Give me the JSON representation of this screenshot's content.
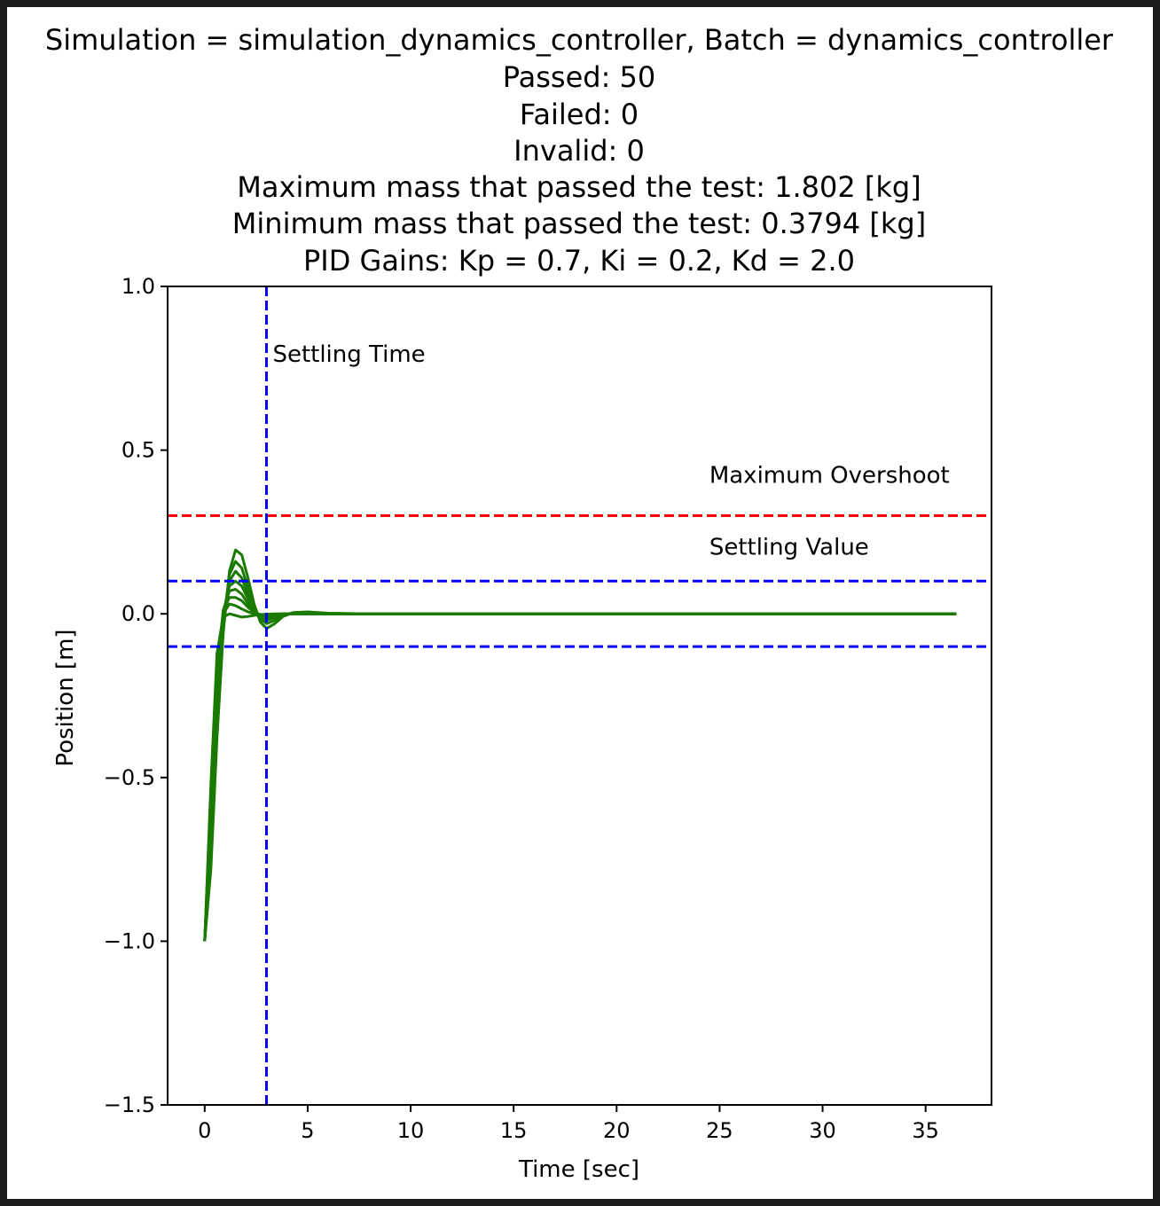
{
  "chart_data": {
    "type": "line",
    "title_lines": [
      "Simulation = simulation_dynamics_controller, Batch = dynamics_controller",
      "Passed: 50",
      "Failed: 0",
      "Invalid: 0",
      "Maximum mass that passed the test: 1.802 [kg]",
      "Minimum mass that passed the test: 0.3794 [kg]",
      "PID Gains: Kp = 0.7, Ki = 0.2, Kd = 2.0"
    ],
    "xlabel": "Time [sec]",
    "ylabel": "Position [m]",
    "xlim": [
      -1.8,
      38.2
    ],
    "ylim": [
      -1.5,
      1.0
    ],
    "xticks": [
      0,
      5,
      10,
      15,
      20,
      25,
      30,
      35
    ],
    "xtick_labels": [
      "0",
      "5",
      "10",
      "15",
      "20",
      "25",
      "30",
      "35"
    ],
    "yticks": [
      1.0,
      0.5,
      0.0,
      -0.5,
      -1.0,
      -1.5
    ],
    "ytick_labels": [
      "1.0",
      "0.5",
      "0.0",
      "−0.5",
      "−1.0",
      "−1.5"
    ],
    "grid": false,
    "reference_lines": [
      {
        "orientation": "horizontal",
        "value": 0.3,
        "color": "#ff0000",
        "style": "dashed"
      },
      {
        "orientation": "horizontal",
        "value": 0.1,
        "color": "#0000ff",
        "style": "dashed"
      },
      {
        "orientation": "horizontal",
        "value": -0.1,
        "color": "#0000ff",
        "style": "dashed"
      },
      {
        "orientation": "vertical",
        "value": 3.0,
        "color": "#0000ff",
        "style": "dashed"
      }
    ],
    "annotations": [
      {
        "text": "Settling Time",
        "x": 3.3,
        "y": 0.77
      },
      {
        "text": "Maximum Overshoot",
        "x": 24.5,
        "y": 0.4
      },
      {
        "text": "Settling Value",
        "x": 24.5,
        "y": 0.18
      }
    ],
    "series_color": "#1a7a00",
    "series": [
      {
        "x": [
          0,
          0.3,
          0.6,
          0.9,
          1.2,
          1.5,
          1.8,
          2.1,
          2.4,
          2.7,
          3.0,
          3.4,
          3.8,
          4.3,
          5.0,
          6.0,
          8.0,
          15.0,
          25.0,
          36.5
        ],
        "y": [
          -1.0,
          -0.78,
          -0.38,
          -0.06,
          0.13,
          0.195,
          0.18,
          0.11,
          0.03,
          -0.025,
          -0.045,
          -0.03,
          -0.008,
          0.004,
          0.006,
          0.002,
          0.0,
          0.0,
          0.0,
          0.0
        ]
      },
      {
        "x": [
          0,
          0.3,
          0.6,
          0.9,
          1.2,
          1.5,
          1.8,
          2.1,
          2.4,
          2.7,
          3.0,
          3.4,
          3.8,
          4.3,
          5.0,
          6.0,
          8.0,
          15.0,
          25.0,
          36.5
        ],
        "y": [
          -1.0,
          -0.74,
          -0.33,
          -0.03,
          0.12,
          0.16,
          0.14,
          0.08,
          0.02,
          -0.015,
          -0.03,
          -0.02,
          -0.005,
          0.003,
          0.004,
          0.001,
          0.0,
          0.0,
          0.0,
          0.0
        ]
      },
      {
        "x": [
          0,
          0.3,
          0.6,
          0.9,
          1.2,
          1.5,
          1.8,
          2.1,
          2.4,
          2.7,
          3.0,
          3.4,
          3.8,
          4.3,
          5.0,
          6.0,
          8.0,
          15.0,
          25.0,
          36.5
        ],
        "y": [
          -1.0,
          -0.7,
          -0.28,
          -0.01,
          0.1,
          0.13,
          0.11,
          0.06,
          0.015,
          -0.01,
          -0.02,
          -0.012,
          -0.003,
          0.002,
          0.002,
          0.0,
          0.0,
          0.0,
          0.0,
          0.0
        ]
      },
      {
        "x": [
          0,
          0.3,
          0.6,
          0.9,
          1.2,
          1.5,
          1.8,
          2.1,
          2.4,
          2.7,
          3.0,
          3.4,
          3.8,
          4.3,
          5.0,
          6.0,
          8.0,
          15.0,
          25.0,
          36.5
        ],
        "y": [
          -1.0,
          -0.66,
          -0.24,
          0.0,
          0.085,
          0.1,
          0.085,
          0.045,
          0.01,
          -0.006,
          -0.012,
          -0.007,
          -0.002,
          0.001,
          0.001,
          0.0,
          0.0,
          0.0,
          0.0,
          0.0
        ]
      },
      {
        "x": [
          0,
          0.3,
          0.6,
          0.9,
          1.2,
          1.5,
          1.8,
          2.1,
          2.4,
          2.7,
          3.0,
          3.4,
          3.8,
          4.3,
          5.0,
          6.0,
          8.0,
          15.0,
          25.0,
          36.5
        ],
        "y": [
          -1.0,
          -0.62,
          -0.2,
          0.01,
          0.07,
          0.075,
          0.06,
          0.03,
          0.006,
          -0.004,
          -0.007,
          -0.004,
          -0.001,
          0.0,
          0.0,
          0.0,
          0.0,
          0.0,
          0.0,
          0.0
        ]
      },
      {
        "x": [
          0,
          0.3,
          0.6,
          0.9,
          1.2,
          1.5,
          1.8,
          2.1,
          2.4,
          2.7,
          3.0,
          3.4,
          3.8,
          4.3,
          5.0,
          6.0,
          8.0,
          15.0,
          25.0,
          36.5
        ],
        "y": [
          -1.0,
          -0.58,
          -0.17,
          0.01,
          0.05,
          0.05,
          0.04,
          0.02,
          0.004,
          -0.002,
          -0.004,
          -0.002,
          0.0,
          0.0,
          0.0,
          0.0,
          0.0,
          0.0,
          0.0,
          0.0
        ]
      },
      {
        "x": [
          0,
          0.3,
          0.6,
          0.9,
          1.2,
          1.5,
          1.8,
          2.1,
          2.4,
          2.7,
          3.0,
          3.4,
          3.8,
          4.3,
          5.0,
          6.0,
          8.0,
          15.0,
          25.0,
          36.5
        ],
        "y": [
          -1.0,
          -0.55,
          -0.14,
          0.0,
          0.03,
          0.025,
          0.015,
          0.006,
          0.0,
          -0.002,
          -0.002,
          -0.001,
          0.0,
          0.0,
          0.0,
          0.0,
          0.0,
          0.0,
          0.0,
          0.0
        ]
      },
      {
        "x": [
          0,
          0.3,
          0.6,
          0.9,
          1.2,
          1.5,
          1.8,
          2.1,
          2.4,
          2.7,
          3.0,
          3.4,
          3.8,
          4.3,
          5.0,
          6.0,
          8.0,
          15.0,
          25.0,
          36.5
        ],
        "y": [
          -1.0,
          -0.52,
          -0.12,
          -0.01,
          0.0,
          -0.005,
          -0.01,
          -0.008,
          -0.005,
          -0.003,
          -0.001,
          0.0,
          0.0,
          0.0,
          0.0,
          0.0,
          0.0,
          0.0,
          0.0,
          0.0
        ]
      }
    ]
  }
}
